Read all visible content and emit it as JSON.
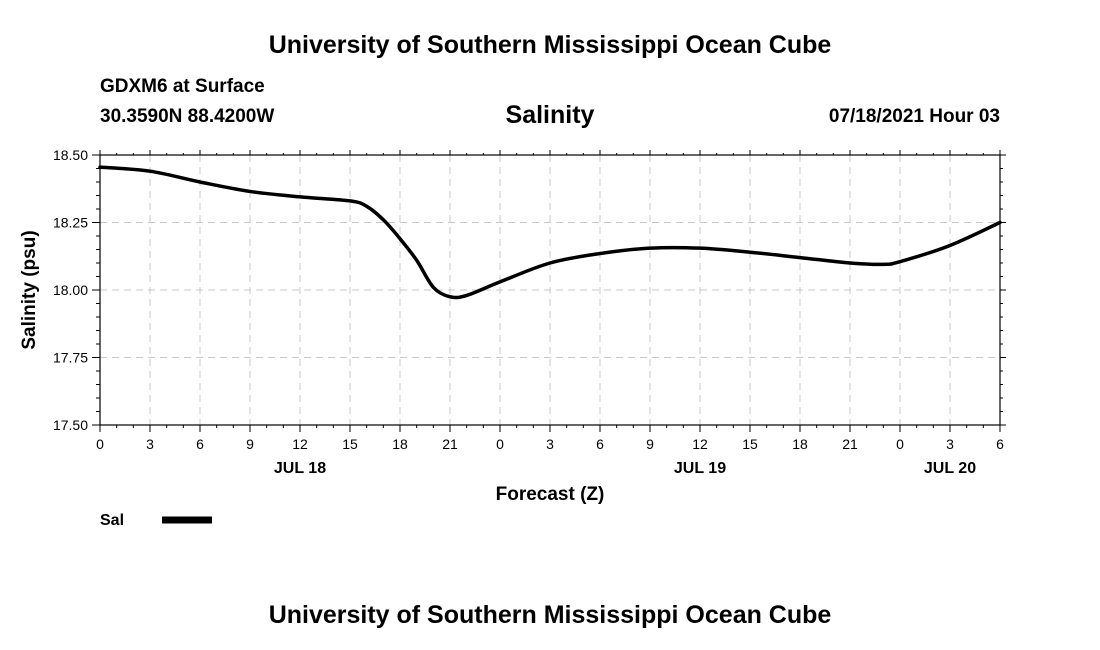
{
  "header": {
    "title": "University of Southern Mississippi Ocean Cube",
    "station": "GDXM6 at Surface",
    "coords": "30.3590N  88.4200W",
    "date": "07/18/2021 Hour 03"
  },
  "footer": {
    "title": "University of Southern Mississippi Ocean Cube"
  },
  "chart_data": {
    "type": "line",
    "title": "Salinity",
    "xlabel": "Forecast (Z)",
    "ylabel": "Salinity (psu)",
    "ylim": [
      17.5,
      18.5
    ],
    "xlim": [
      0,
      54
    ],
    "x_unit": "hours from JUL 18 00Z",
    "y_ticks": [
      "17.50",
      "17.75",
      "18.00",
      "18.25",
      "18.50"
    ],
    "x_ticks": [
      "0",
      "3",
      "6",
      "9",
      "12",
      "15",
      "18",
      "21",
      "0",
      "3",
      "6",
      "9",
      "12",
      "15",
      "18",
      "21",
      "0",
      "3",
      "6"
    ],
    "date_labels": [
      {
        "label": "JUL 18",
        "hour": 12
      },
      {
        "label": "JUL 19",
        "hour": 36
      },
      {
        "label": "JUL 20",
        "hour": 51
      }
    ],
    "grid": true,
    "legend_position": "bottom-left",
    "series": [
      {
        "name": "Sal",
        "color": "#000000",
        "x": [
          0,
          3,
          6,
          9,
          12,
          15,
          16,
          17,
          18,
          19,
          20,
          21,
          22,
          24,
          27,
          30,
          33,
          36,
          39,
          42,
          45,
          47,
          48,
          51,
          54
        ],
        "y": [
          18.455,
          18.44,
          18.4,
          18.365,
          18.345,
          18.33,
          18.31,
          18.26,
          18.19,
          18.11,
          18.01,
          17.975,
          17.98,
          18.03,
          18.1,
          18.135,
          18.155,
          18.155,
          18.14,
          18.12,
          18.1,
          18.095,
          18.105,
          18.165,
          18.25
        ]
      }
    ]
  }
}
